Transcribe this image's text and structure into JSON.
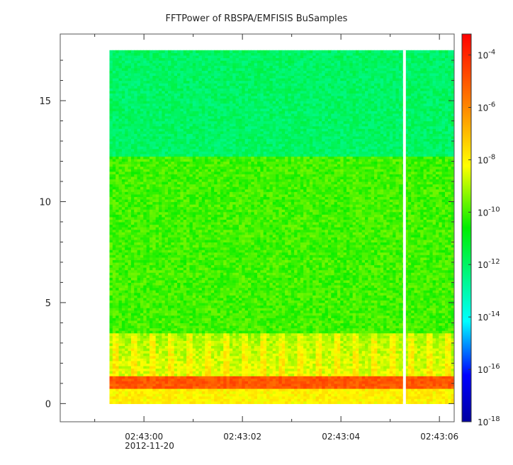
{
  "chart_data": {
    "type": "heatmap",
    "title": "FFTPower of RBSPA/EMFISIS  BuSamples",
    "xlabel": "",
    "ylabel": "",
    "x_ticks": [
      "02:43:00",
      "02:43:02",
      "02:43:04",
      "02:43:06"
    ],
    "x_date_label": "2012-11-20",
    "x_tick_values_s": [
      0,
      2,
      4,
      6
    ],
    "xlim_s": [
      -1.7,
      6.3
    ],
    "data_range_s": [
      -0.7,
      6.3
    ],
    "gap_s": 5.29,
    "y_ticks": [
      "0",
      "5",
      "10",
      "15"
    ],
    "y_tick_values": [
      0,
      5,
      10,
      15
    ],
    "ylim": [
      -0.9,
      18.3
    ],
    "y_data_max": 17.5,
    "colorbar": {
      "scale": "log",
      "range": [
        -18,
        -3.2
      ],
      "ticks": [
        "-4",
        "-6",
        "-8",
        "-10",
        "-12",
        "-14",
        "-16",
        "-18"
      ],
      "tick_exponents": [
        -4,
        -6,
        -8,
        -10,
        -12,
        -14,
        -16,
        -18
      ],
      "tick_base": "10"
    },
    "bands": [
      {
        "y": [
          12.3,
          17.5
        ],
        "log_power": -12.0
      },
      {
        "y": [
          3.5,
          12.3
        ],
        "log_power": -10.0
      },
      {
        "y": [
          1.4,
          3.5
        ],
        "log_power": -8.5
      },
      {
        "y": [
          0.8,
          1.4
        ],
        "log_power": -5.0
      },
      {
        "y": [
          0.0,
          0.8
        ],
        "log_power": -8.0
      }
    ]
  }
}
